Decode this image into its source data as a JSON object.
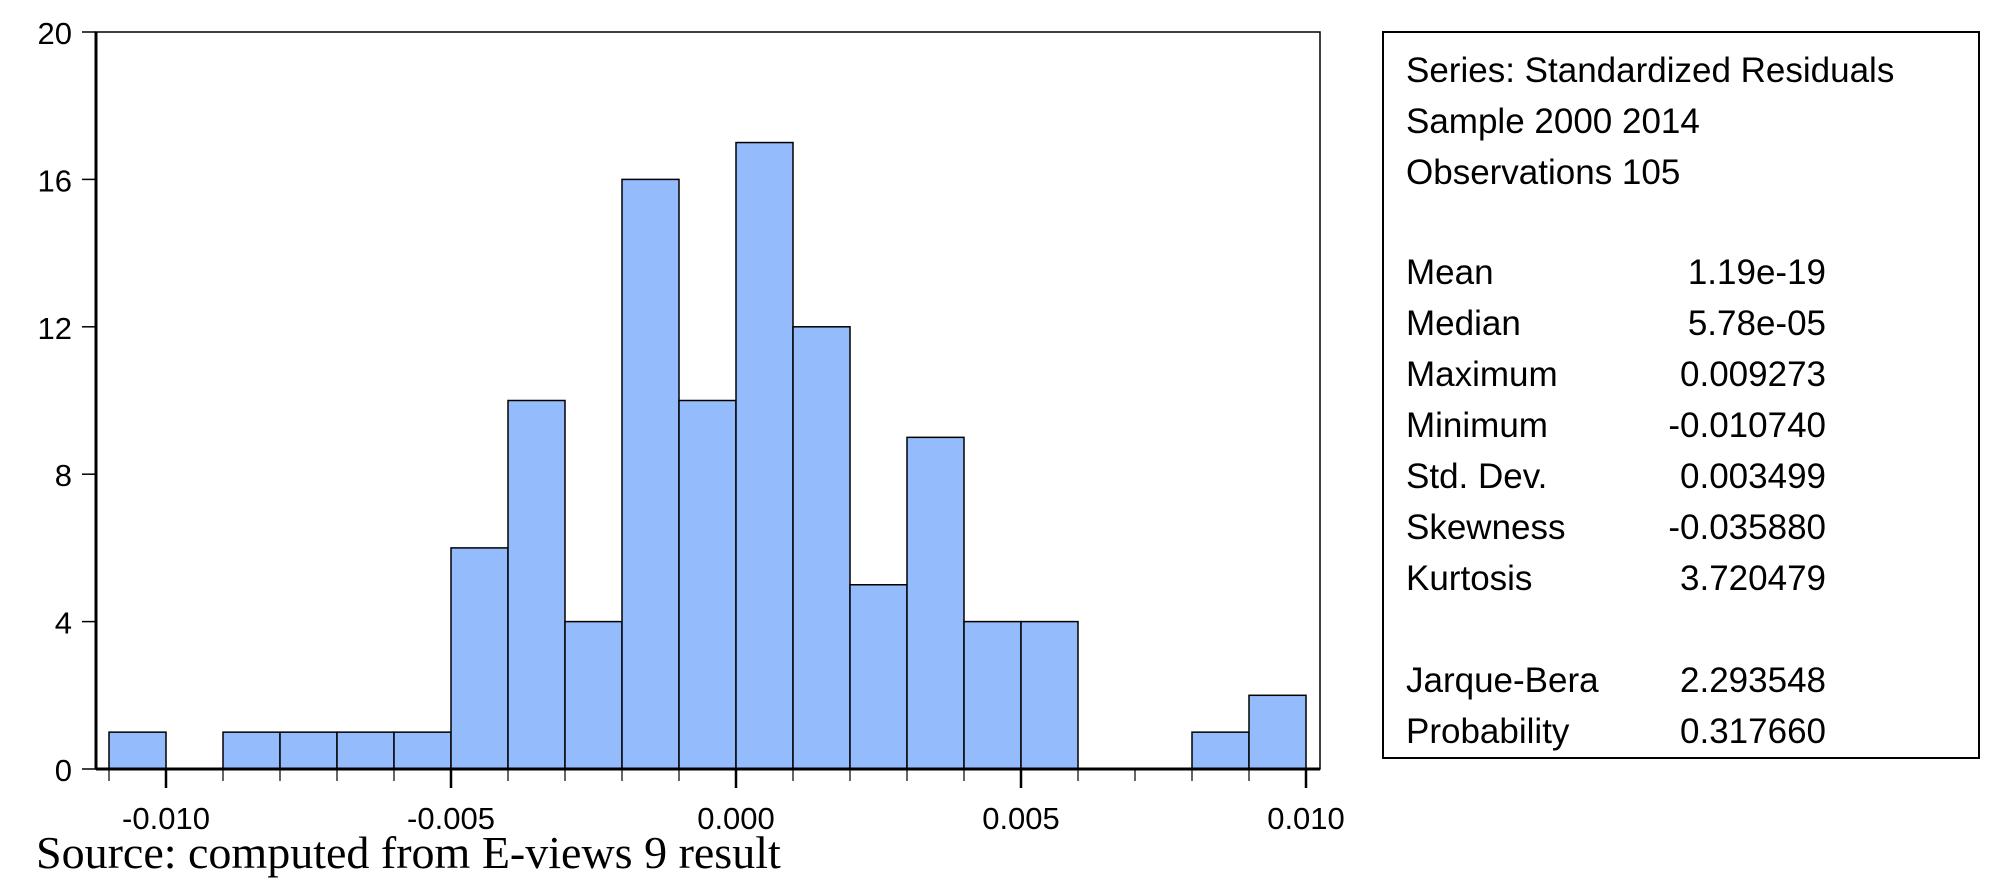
{
  "chart_data": {
    "type": "bar",
    "title": "",
    "xlabel": "",
    "ylabel": "",
    "bin_width": 0.001,
    "bins_start": [
      -0.011,
      -0.01,
      -0.009,
      -0.008,
      -0.007,
      -0.006,
      -0.005,
      -0.004,
      -0.003,
      -0.002,
      -0.001,
      0.0,
      0.001,
      0.002,
      0.003,
      0.004,
      0.005,
      0.006,
      0.007,
      0.008,
      0.009
    ],
    "values": [
      1,
      0,
      1,
      1,
      1,
      1,
      6,
      10,
      4,
      16,
      10,
      17,
      12,
      5,
      9,
      4,
      4,
      0,
      0,
      1,
      2
    ],
    "xlim": [
      -0.011,
      0.01
    ],
    "ylim": [
      0,
      20
    ],
    "x_ticks": [
      "-0.010",
      "-0.005",
      "0.000",
      "0.005",
      "0.010"
    ],
    "x_tick_values": [
      -0.01,
      -0.005,
      0.0,
      0.005,
      0.01
    ],
    "y_ticks": [
      "0",
      "4",
      "8",
      "12",
      "16",
      "20"
    ],
    "y_tick_values": [
      0,
      4,
      8,
      12,
      16,
      20
    ],
    "grid": false,
    "bar_color": "#94BCFC",
    "legend": null
  },
  "stats": {
    "series": "Series: Standardized Residuals",
    "sample": "Sample 2000 2014",
    "observations": "Observations 105",
    "rows": [
      {
        "label": "Mean",
        "value": "1.19e-19"
      },
      {
        "label": "Median",
        "value": "5.78e-05"
      },
      {
        "label": "Maximum",
        "value": "0.009273"
      },
      {
        "label": "Minimum",
        "value": "-0.010740"
      },
      {
        "label": "Std. Dev.",
        "value": "0.003499"
      },
      {
        "label": "Skewness",
        "value": "-0.035880"
      },
      {
        "label": "Kurtosis",
        "value": "3.720479"
      }
    ],
    "tests": [
      {
        "label": "Jarque-Bera",
        "value": "2.293548"
      },
      {
        "label": "Probability",
        "value": "0.317660"
      }
    ]
  },
  "source": "Source: computed from E-views 9 result"
}
